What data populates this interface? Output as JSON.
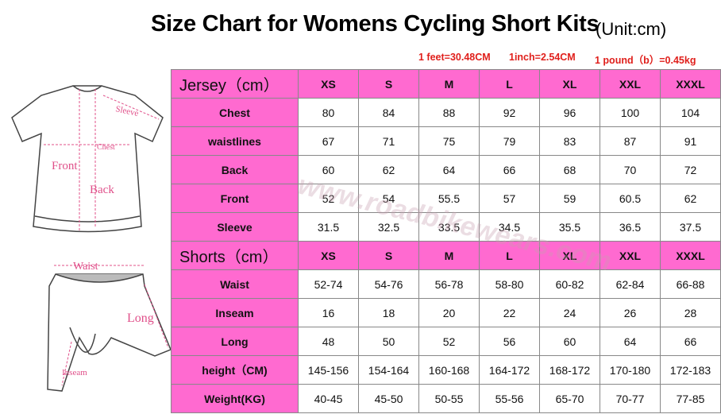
{
  "header": {
    "title": "Size Chart for Womens Cycling Short Kits",
    "unit": "(Unit:cm)",
    "notes": [
      "1 feet=30.48CM",
      "1inch=2.54CM",
      "1 pound（b）=0.45kg"
    ]
  },
  "illustration": {
    "jersey_labels": [
      "Sleeve",
      "Chest",
      "Front",
      "Back"
    ],
    "shorts_labels": [
      "Waist",
      "Long",
      "Inseam"
    ]
  },
  "watermark": "www.roadbikewears.com",
  "table": {
    "sections": [
      {
        "header": [
          "Jersey（cm）",
          "XS",
          "S",
          "M",
          "L",
          "XL",
          "XXL",
          "XXXL"
        ],
        "rows": [
          [
            "Chest",
            "80",
            "84",
            "88",
            "92",
            "96",
            "100",
            "104"
          ],
          [
            "waistlines",
            "67",
            "71",
            "75",
            "79",
            "83",
            "87",
            "91"
          ],
          [
            "Back",
            "60",
            "62",
            "64",
            "66",
            "68",
            "70",
            "72"
          ],
          [
            "Front",
            "52",
            "54",
            "55.5",
            "57",
            "59",
            "60.5",
            "62"
          ],
          [
            "Sleeve",
            "31.5",
            "32.5",
            "33.5",
            "34.5",
            "35.5",
            "36.5",
            "37.5"
          ]
        ]
      },
      {
        "header": [
          "Shorts（cm）",
          "XS",
          "S",
          "M",
          "L",
          "XL",
          "XXL",
          "XXXL"
        ],
        "rows": [
          [
            "Waist",
            "52-74",
            "54-76",
            "56-78",
            "58-80",
            "60-82",
            "62-84",
            "66-88"
          ],
          [
            "Inseam",
            "16",
            "18",
            "20",
            "22",
            "24",
            "26",
            "28"
          ],
          [
            "Long",
            "48",
            "50",
            "52",
            "56",
            "60",
            "64",
            "66"
          ],
          [
            "height（CM)",
            "145-156",
            "154-164",
            "160-168",
            "164-172",
            "168-172",
            "170-180",
            "172-183"
          ],
          [
            "Weight(KG)",
            "40-45",
            "45-50",
            "50-55",
            "55-56",
            "65-70",
            "70-77",
            "77-85"
          ]
        ]
      }
    ]
  }
}
